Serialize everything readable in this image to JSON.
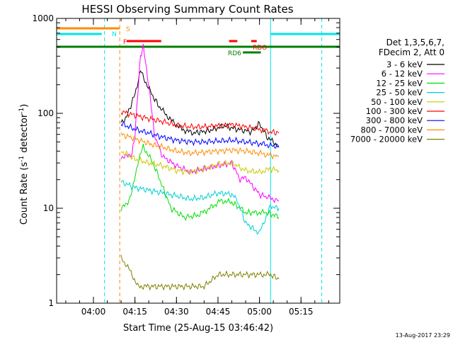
{
  "chart_data": {
    "type": "line",
    "title": "HESSI Observing Summary Count Rates",
    "xlabel": "Start Time (25-Aug-15 03:46:42)",
    "ylabel": "Count Rate (s",
    "ylabel_sup1": "-1",
    "ylabel_mid": " detector",
    "ylabel_sup2": "-1",
    "ylabel_end": ")",
    "y_scale": "log",
    "ylim": [
      1,
      1000
    ],
    "xlim": [
      "03:46:42",
      "05:29:00"
    ],
    "x_ticks": [
      "04:00",
      "04:15",
      "04:30",
      "04:45",
      "05:00",
      "05:15"
    ],
    "y_ticks": [
      "1",
      "10",
      "100",
      "1000"
    ],
    "footer": "13-Aug-2017 23:29",
    "legend": {
      "header1": "Det 1,3,5,6,7,",
      "header2": "FDecim 2, Att 0",
      "placement": "right"
    },
    "flags": [
      {
        "label": "S",
        "color": "#ff8c00"
      },
      {
        "label": "N",
        "color": "#00e5e5"
      },
      {
        "label": "F",
        "color": "#ff0000"
      },
      {
        "label": "RDO",
        "color": "#ff0000"
      },
      {
        "label": "RD6",
        "color": "#008000"
      }
    ],
    "series": [
      {
        "name": "3 - 6 keV",
        "color": "#000000",
        "x": [
          "04:10",
          "04:12",
          "04:15",
          "04:17",
          "04:19",
          "04:21",
          "04:24",
          "04:28",
          "04:32",
          "04:36",
          "04:42",
          "04:47",
          "04:52",
          "04:57",
          "05:00",
          "05:03",
          "05:07"
        ],
        "y": [
          80,
          92,
          160,
          280,
          210,
          160,
          115,
          85,
          68,
          62,
          66,
          74,
          68,
          64,
          78,
          55,
          45
        ]
      },
      {
        "name": "6 - 12 keV",
        "color": "#ff00ff",
        "x": [
          "04:10",
          "04:12",
          "04:14",
          "04:15",
          "04:16",
          "04:17",
          "04:18",
          "04:20",
          "04:22",
          "04:25",
          "04:30",
          "04:35",
          "04:40",
          "04:45",
          "04:50",
          "04:53",
          "04:55",
          "05:00",
          "05:03",
          "05:07"
        ],
        "y": [
          35,
          35,
          38,
          60,
          160,
          400,
          500,
          200,
          60,
          35,
          28,
          24,
          26,
          28,
          30,
          20,
          21,
          14,
          13,
          12
        ]
      },
      {
        "name": "12 - 25 keV",
        "color": "#00e000",
        "x": [
          "04:10",
          "04:12",
          "04:14",
          "04:16",
          "04:18",
          "04:22",
          "04:28",
          "04:33",
          "04:38",
          "04:42",
          "04:46",
          "04:50",
          "04:53",
          "04:55",
          "04:58",
          "05:02",
          "05:05",
          "05:07"
        ],
        "y": [
          10,
          11,
          15,
          30,
          45,
          28,
          10,
          8,
          8.5,
          10,
          12,
          11.5,
          10,
          9,
          9,
          9,
          8.5,
          8
        ]
      },
      {
        "name": "25 - 50 keV",
        "color": "#00d0d0",
        "x": [
          "04:10",
          "04:15",
          "04:20",
          "04:25",
          "04:30",
          "04:35",
          "04:40",
          "04:45",
          "04:50",
          "04:52",
          "04:55",
          "04:58",
          "05:00",
          "05:04",
          "05:07"
        ],
        "y": [
          19,
          16.5,
          15.5,
          14.5,
          13.5,
          12.5,
          13,
          14.5,
          14,
          12,
          7,
          6,
          5.5,
          10.5,
          10
        ]
      },
      {
        "name": "50 - 100 keV",
        "color": "#c8c800",
        "x": [
          "04:10",
          "04:15",
          "04:20",
          "04:25",
          "04:30",
          "04:35",
          "04:40",
          "04:45",
          "04:50",
          "04:53",
          "04:55",
          "05:00",
          "05:04",
          "05:07"
        ],
        "y": [
          40,
          33,
          30,
          28,
          25,
          24,
          26,
          29,
          30,
          27,
          25,
          24,
          26,
          25
        ]
      },
      {
        "name": "100 - 300 keV",
        "color": "#ff0000",
        "x": [
          "04:10",
          "04:15",
          "04:20",
          "04:25",
          "04:30",
          "04:35",
          "04:40",
          "04:45",
          "04:50",
          "04:55",
          "05:00",
          "05:04",
          "05:07"
        ],
        "y": [
          105,
          95,
          88,
          82,
          75,
          72,
          72,
          74,
          76,
          72,
          68,
          64,
          62
        ]
      },
      {
        "name": "300 - 800 keV",
        "color": "#0000ff",
        "x": [
          "04:10",
          "04:15",
          "04:20",
          "04:25",
          "04:30",
          "04:35",
          "04:40",
          "04:45",
          "04:50",
          "04:55",
          "05:00",
          "05:04",
          "05:07"
        ],
        "y": [
          78,
          68,
          62,
          56,
          52,
          50,
          50,
          51,
          52,
          50,
          48,
          46,
          44
        ]
      },
      {
        "name": "800 - 7000 keV",
        "color": "#ff8c00",
        "x": [
          "04:10",
          "04:15",
          "04:20",
          "04:25",
          "04:30",
          "04:35",
          "04:40",
          "04:45",
          "04:50",
          "04:55",
          "05:00",
          "05:04",
          "05:07"
        ],
        "y": [
          60,
          54,
          48,
          44,
          40,
          38,
          39,
          40,
          41,
          40,
          38,
          36,
          35
        ]
      },
      {
        "name": "7000 - 20000 keV",
        "color": "#808000",
        "x": [
          "04:10",
          "04:12",
          "04:14",
          "04:16",
          "04:20",
          "04:25",
          "04:30",
          "04:35",
          "04:40",
          "04:45",
          "04:50",
          "04:55",
          "05:00",
          "05:04",
          "05:07"
        ],
        "y": [
          3,
          2.5,
          2,
          1.5,
          1.5,
          1.5,
          1.5,
          1.5,
          1.5,
          2,
          2,
          2,
          2,
          2,
          1.8
        ]
      }
    ]
  }
}
